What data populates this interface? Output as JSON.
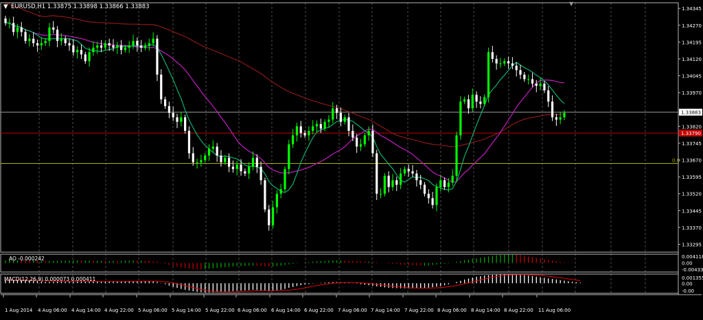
{
  "symbol_header": "EURUSD,H1  1.33875 1.33898 1.33866 1.33883",
  "colors": {
    "background": "#000000",
    "grid": "#c0c0c0",
    "bull_candle": "#00ff00",
    "bear_candle": "#ffffff",
    "ma_fast": "#10b070",
    "ma_mid": "#c020c0",
    "ma_slow": "#8a1a1a",
    "resistance_line": "#c00000",
    "fib_line": "#b0b000",
    "bid_line": "#a0a0a0",
    "ao_up": "#00a000",
    "ao_down": "#c00000",
    "macd_hist": "#ffffff",
    "macd_signal": "#e00000"
  },
  "main_panel": {
    "price_labels": [
      "1.34345",
      "1.34270",
      "1.34195",
      "1.34120",
      "1.34045",
      "1.33970",
      "1.33820",
      "1.33745",
      "1.33670",
      "1.33595",
      "1.33520",
      "1.33445",
      "1.33370",
      "1.33295"
    ],
    "current_price_tag": "1.33883",
    "red_level_tag": "1.33790",
    "fib_label": "0.0"
  },
  "ao_panel": {
    "label": "AO -0.000242",
    "scale_labels": [
      "0.004118",
      "0.00",
      "-0.004335"
    ]
  },
  "macd_panel": {
    "label": "MACD(12,26,9) 0.000073 0.000411",
    "scale_labels": [
      "0.001355",
      "0.00",
      "-0.00"
    ]
  },
  "time_axis": [
    "1 Aug 2014",
    "4 Aug 06:00",
    "4 Aug 14:00",
    "4 Aug 22:00",
    "5 Aug 06:00",
    "5 Aug 14:00",
    "5 Aug 22:00",
    "6 Aug 06:00",
    "6 Aug 14:00",
    "6 Aug 22:00",
    "7 Aug 06:00",
    "7 Aug 14:00",
    "7 Aug 22:00",
    "8 Aug 06:00",
    "8 Aug 14:00",
    "8 Aug 22:00",
    "11 Aug 06:00"
  ],
  "chart_data": {
    "type": "candlestick",
    "symbol": "EURUSD",
    "timeframe": "H1",
    "ohlc_header": {
      "open": 1.33875,
      "high": 1.33898,
      "low": 1.33866,
      "close": 1.33883
    },
    "ylim": [
      1.3326,
      1.3437
    ],
    "price_ticks": [
      1.34345,
      1.3427,
      1.34195,
      1.3412,
      1.34045,
      1.3397,
      1.33883,
      1.3382,
      1.3379,
      1.33745,
      1.3367,
      1.33595,
      1.3352,
      1.33445,
      1.3337,
      1.33295
    ],
    "horizontal_levels": [
      {
        "value": 1.33883,
        "kind": "bid"
      },
      {
        "value": 1.3379,
        "kind": "resistance"
      },
      {
        "value": 1.33655,
        "kind": "fib",
        "label": "0.0"
      }
    ],
    "closes": [
      1.3428,
      1.3428,
      1.3424,
      1.3426,
      1.3424,
      1.342,
      1.3421,
      1.3419,
      1.3418,
      1.3419,
      1.342,
      1.3426,
      1.3425,
      1.342,
      1.3421,
      1.3419,
      1.3418,
      1.3415,
      1.3416,
      1.3414,
      1.3411,
      1.3415,
      1.3417,
      1.3418,
      1.3417,
      1.3419,
      1.3418,
      1.3417,
      1.3418,
      1.3416,
      1.3417,
      1.3418,
      1.342,
      1.3418,
      1.3417,
      1.3418,
      1.3419,
      1.3421,
      1.3405,
      1.3394,
      1.3391,
      1.3388,
      1.3386,
      1.3384,
      1.3386,
      1.338,
      1.337,
      1.3366,
      1.3366,
      1.3367,
      1.3369,
      1.3372,
      1.3373,
      1.3369,
      1.3366,
      1.3368,
      1.3364,
      1.3363,
      1.3365,
      1.3362,
      1.3361,
      1.3364,
      1.3368,
      1.3364,
      1.3358,
      1.3345,
      1.3338,
      1.3346,
      1.3352,
      1.3354,
      1.3363,
      1.3374,
      1.3378,
      1.3382,
      1.3379,
      1.3378,
      1.338,
      1.3382,
      1.3383,
      1.3381,
      1.3384,
      1.3385,
      1.339,
      1.3388,
      1.3384,
      1.3386,
      1.338,
      1.3377,
      1.3373,
      1.3374,
      1.3378,
      1.338,
      1.337,
      1.3352,
      1.3352,
      1.336,
      1.3355,
      1.3358,
      1.3356,
      1.3361,
      1.3363,
      1.3362,
      1.3361,
      1.3358,
      1.3356,
      1.3352,
      1.335,
      1.3347,
      1.3355,
      1.3358,
      1.3355,
      1.3357,
      1.336,
      1.3378,
      1.3393,
      1.3394,
      1.339,
      1.3396,
      1.3393,
      1.3392,
      1.3395,
      1.3415,
      1.3412,
      1.341,
      1.341,
      1.3411,
      1.341,
      1.3409,
      1.3407,
      1.3405,
      1.3403,
      1.3403,
      1.3401,
      1.34,
      1.3401,
      1.3398,
      1.3393,
      1.3386,
      1.3385,
      1.3386,
      1.3388
    ],
    "ao": [
      0.0012,
      0.0013,
      0.0014,
      0.0014,
      0.0013,
      0.0012,
      0.0011,
      0.0011,
      0.001,
      0.001,
      0.0009,
      0.0009,
      0.001,
      0.001,
      0.0011,
      0.0011,
      0.0011,
      0.0012,
      0.0012,
      0.0011,
      0.0011,
      0.0011,
      0.001,
      0.001,
      0.001,
      0.0009,
      0.0009,
      0.001,
      0.0009,
      0.001,
      0.0011,
      0.0011,
      0.0012,
      0.0011,
      0.0011,
      0.001,
      0.0009,
      0.0008,
      0.0006,
      0.0002,
      -0.0005,
      -0.001,
      -0.0014,
      -0.0018,
      -0.0021,
      -0.0024,
      -0.0027,
      -0.0029,
      -0.003,
      -0.0031,
      -0.003,
      -0.0028,
      -0.0026,
      -0.0024,
      -0.0022,
      -0.002,
      -0.0019,
      -0.0017,
      -0.0016,
      -0.0015,
      -0.0014,
      -0.0013,
      -0.0012,
      -0.0013,
      -0.0014,
      -0.0015,
      -0.0017,
      -0.0016,
      -0.0015,
      -0.0013,
      -0.001,
      -0.0007,
      -0.0004,
      -0.0002,
      0.0,
      0.0002,
      0.0004,
      0.0006,
      0.0008,
      0.0009,
      0.001,
      0.0011,
      0.0012,
      0.0012,
      0.0012,
      0.0011,
      0.001,
      0.0009,
      0.0008,
      0.0007,
      0.0006,
      0.0006,
      0.0005,
      0.0003,
      0.0001,
      -0.0001,
      -0.0003,
      -0.0005,
      -0.0006,
      -0.0008,
      -0.0009,
      -0.001,
      -0.0011,
      -0.0012,
      -0.0013,
      -0.0013,
      -0.0012,
      -0.001,
      -0.0008,
      -0.0006,
      -0.0004,
      -0.0002,
      0.0001,
      0.0005,
      0.0009,
      0.0013,
      0.0016,
      0.0019,
      0.0022,
      0.0025,
      0.0028,
      0.0031,
      0.0034,
      0.0036,
      0.0038,
      0.0039,
      0.004,
      0.004,
      0.0039,
      0.0037,
      0.0034,
      0.0031,
      0.0028,
      0.0024,
      0.0021,
      0.0018,
      0.0014,
      0.0011,
      0.0008,
      0.0005,
      0.0003,
      0.0001,
      -0.0002
    ],
    "macd_hist": [
      0.00045,
      0.00048,
      0.0005,
      0.00052,
      0.0005,
      0.00046,
      0.0004,
      0.00035,
      0.0003,
      0.00026,
      0.00022,
      0.0002,
      0.00021,
      0.00024,
      0.00026,
      0.00028,
      0.00029,
      0.0003,
      0.0003,
      0.00028,
      0.00026,
      0.00025,
      0.00024,
      0.00024,
      0.00024,
      0.00025,
      0.00026,
      0.00027,
      0.00028,
      0.00029,
      0.0003,
      0.00031,
      0.00033,
      0.00032,
      0.00031,
      0.0003,
      0.00029,
      0.00028,
      0.00018,
      5e-05,
      -0.00015,
      -0.00035,
      -0.00055,
      -0.0007,
      -0.00085,
      -0.00098,
      -0.0011,
      -0.0012,
      -0.00128,
      -0.00133,
      -0.00136,
      -0.00137,
      -0.00136,
      -0.00133,
      -0.0013,
      -0.00127,
      -0.00124,
      -0.0012,
      -0.00116,
      -0.00112,
      -0.00108,
      -0.00104,
      -0.001,
      -0.00102,
      -0.00108,
      -0.00115,
      -0.00122,
      -0.00118,
      -0.0011,
      -0.00098,
      -0.00085,
      -0.0007,
      -0.00056,
      -0.00042,
      -0.0003,
      -0.0002,
      -0.00012,
      -4e-05,
      2e-05,
      6e-05,
      0.0001,
      0.00013,
      0.00016,
      0.00017,
      0.00016,
      0.00013,
      8e-05,
      2e-05,
      -6e-05,
      -0.00014,
      -0.00022,
      -0.0003,
      -0.00038,
      -0.00046,
      -0.00054,
      -0.00062,
      -0.00068,
      -0.00072,
      -0.00074,
      -0.00075,
      -0.00076,
      -0.00076,
      -0.00076,
      -0.00074,
      -0.00072,
      -0.0007,
      -0.00066,
      -0.0006,
      -0.00052,
      -0.00042,
      -0.0003,
      -0.00016,
      0.0,
      0.00018,
      0.00036,
      0.00054,
      0.0007,
      0.00084,
      0.00096,
      0.00106,
      0.00114,
      0.0012,
      0.00125,
      0.00128,
      0.0013,
      0.00131,
      0.00131,
      0.0013,
      0.00128,
      0.00125,
      0.0012,
      0.00114,
      0.00106,
      0.00098,
      0.0009,
      0.00081,
      0.00072,
      0.00064,
      0.00055,
      0.00046,
      0.00038,
      0.0003,
      0.00022,
      0.00015,
      8e-05
    ],
    "ao_ylim": [
      -0.004335,
      0.004118
    ],
    "macd_ylim": [
      -0.0015,
      0.001355
    ]
  }
}
